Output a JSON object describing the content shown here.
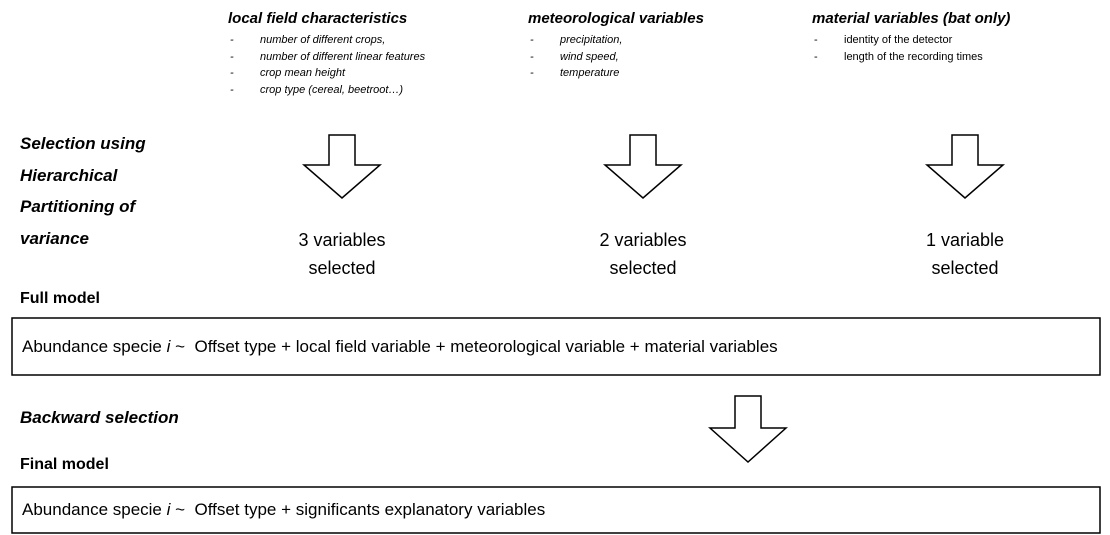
{
  "selection_label": [
    "Selection using",
    "Hierarchical",
    "Partitioning of",
    "variance"
  ],
  "columns": [
    {
      "title": "local field characteristics",
      "items": [
        "number of different crops,",
        "number of different linear features",
        "crop mean height",
        "crop type (cereal, beetroot…)"
      ],
      "italic_items": true,
      "result": [
        "3 variables",
        "selected"
      ]
    },
    {
      "title": "meteorological variables",
      "items": [
        "precipitation,",
        "wind speed,",
        "temperature"
      ],
      "italic_items": true,
      "result": [
        "2 variables",
        "selected"
      ]
    },
    {
      "title": "material variables (bat only)",
      "items": [
        "identity of the detector",
        "length of the recording times"
      ],
      "italic_items": false,
      "result": [
        "1 variable",
        "selected"
      ]
    }
  ],
  "full_model": {
    "label": "Full model",
    "formula": {
      "prefix": "Abundance specie ",
      "variable": "i",
      "rest": " ~  Offset type + local field variable + meteorological variable + material variables"
    }
  },
  "backward_selection": "Backward selection",
  "final_model": {
    "label": "Final model",
    "formula": {
      "prefix": "Abundance specie ",
      "variable": "i",
      "rest": " ~  Offset type + significants explanatory variables"
    }
  }
}
